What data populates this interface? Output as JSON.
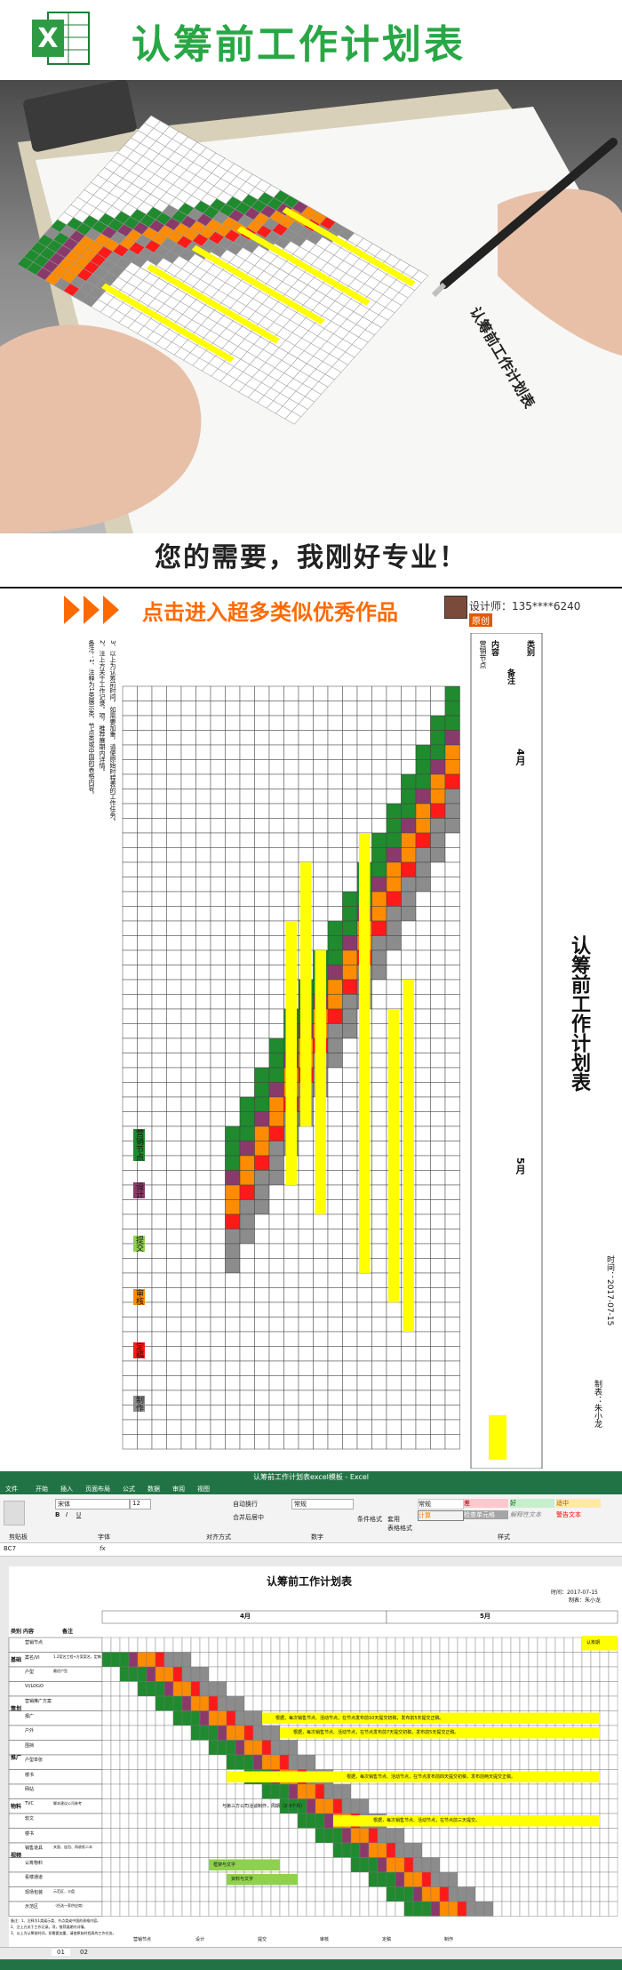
{
  "hero": {
    "title": "认筹前工作计划表",
    "slogan": "您的需要，我刚好专业！",
    "sheet_title": "认筹前工作计划表"
  },
  "banner": {
    "link_text": "点击进入超多类似优秀作品",
    "designer": "设计师：135****6240",
    "badge": "原创"
  },
  "sheet": {
    "title": "认筹前工作计划表",
    "date_label": "时间：2017-07-15",
    "maker_label": "制表：朱小龙",
    "header_category": "类别",
    "header_content": "内容",
    "header_note": "备注",
    "month1": "4月",
    "month2": "5月",
    "row_label_top": "营销节点",
    "note_lines": [
      "备注：1、注释为1类展示类、节点类或中国的表格内容。",
      "2、注上方关于工作记录。项，推荐展期内详情。",
      "3、以上为认筹前时间，如需要加重，请使原始时程表的工作任务。"
    ],
    "legend": [
      "营销节点",
      "设计",
      "提交",
      "审核",
      "定稿",
      "制作"
    ]
  },
  "excel": {
    "window_title": "认筹前工作计划表excel模板 - Excel",
    "tabs": [
      "文件",
      "开始",
      "插入",
      "页面布局",
      "公式",
      "数据",
      "审阅",
      "视图"
    ],
    "clipboard": "剪贴板",
    "font_group": "字体",
    "align_group": "对齐方式",
    "number_group": "数字",
    "styles_group": "样式",
    "font_name": "宋体",
    "font_size": "12",
    "number_format": "常规",
    "wrap_label": "自动换行",
    "merge_label": "合并后居中",
    "cond_format": "条件格式",
    "table_format": "套用\n表格格式",
    "style_cells": [
      "常规",
      "差",
      "好",
      "适中",
      "计算",
      "检查单元格",
      "解释性文本",
      "警告文本"
    ],
    "cell_ref": "BC7",
    "fx": "fx",
    "sheet_tabs": [
      "01",
      "02"
    ],
    "sheet_title": "认筹前工作计划表",
    "date_text": "时间：2017-07-15",
    "maker_text": "制表：朱小龙",
    "categories": [
      "基础",
      "策划",
      "推广",
      "物料",
      "视频"
    ],
    "rows": [
      {
        "name": "营销节点",
        "note": ""
      },
      {
        "name": "案名/VI",
        "note": "1.2案名工程+方案案名，定稿"
      },
      {
        "name": "户型",
        "note": "最优户型"
      },
      {
        "name": "VI/LOGO",
        "note": ""
      },
      {
        "name": "营销推广方案",
        "note": ""
      },
      {
        "name": "报广",
        "note": ""
      },
      {
        "name": "户外",
        "note": ""
      },
      {
        "name": "围挡",
        "note": ""
      },
      {
        "name": "户型单张",
        "note": ""
      },
      {
        "name": "楼书",
        "note": ""
      },
      {
        "name": "网站",
        "note": ""
      },
      {
        "name": "TVC",
        "note": "脚本建议公司参考"
      },
      {
        "name": "软文",
        "note": ""
      },
      {
        "name": "楼书",
        "note": ""
      },
      {
        "name": "销售道具",
        "note": "夹面、连包、再收纸二本"
      },
      {
        "name": "认筹物料",
        "note": ""
      },
      {
        "name": "看楼通道",
        "note": ""
      },
      {
        "name": "现场包装",
        "note": "示范区、沙盘"
      },
      {
        "name": "示范区",
        "note": "（任选一家供应商）"
      }
    ],
    "bar_texts": [
      "根据，每次销售节点、活动节点，在节点发布前10天提交初稿，发布前5天提交正稿。",
      "根据，每次销售节点、活动节点，在节点发布前7天提交初稿，发布前5天提交正稿。",
      "根据，每次销售节点、活动节点，在节点发布前四天提交初稿，发布前两天提交正稿。",
      "与第三方公司洽谈制作，周期（2-3个月）",
      "根据，每次销售节点、活动节点，在节点前三天提交。",
      "框架与文字",
      "资料与文字",
      "认筹期"
    ],
    "legend": [
      "营销节点",
      "设计",
      "提交",
      "审核",
      "定稿",
      "制作"
    ],
    "colors": {
      "green": "#1f8a2e",
      "orange": "#ff8c00",
      "yellow": "#ffff00",
      "gray": "#8c8c8c",
      "red": "#ff1a1a",
      "purple": "#8a3a6a",
      "lightgreen": "#8fd14f",
      "excel_green": "#217346"
    }
  }
}
